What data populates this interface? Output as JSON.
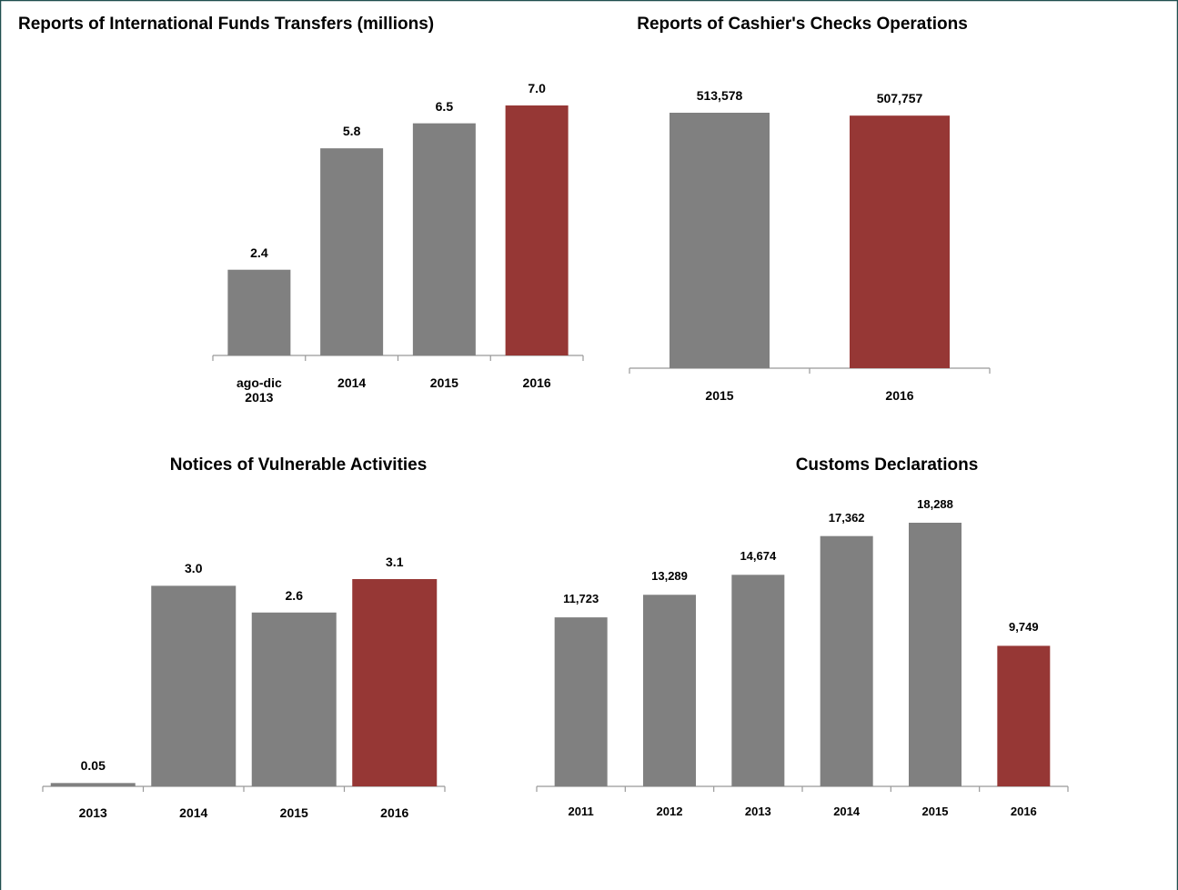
{
  "chart_data": [
    {
      "type": "bar",
      "title": "Reports of International Funds Transfers (millions)",
      "categories": [
        "ago-dic\n2013",
        "2014",
        "2015",
        "2016"
      ],
      "values": [
        2.4,
        5.8,
        6.5,
        7.0
      ],
      "value_labels": [
        "2.4",
        "5.8",
        "6.5",
        "7.0"
      ],
      "colors": [
        "#808080",
        "#808080",
        "#808080",
        "#963735"
      ]
    },
    {
      "type": "bar",
      "title": "Reports of Cashier's Checks Operations",
      "categories": [
        "2015",
        "2016"
      ],
      "values": [
        513578,
        507757
      ],
      "value_labels": [
        "513,578",
        "507,757"
      ],
      "colors": [
        "#808080",
        "#963735"
      ]
    },
    {
      "type": "bar",
      "title": "Notices of Vulnerable Activities",
      "categories": [
        "2013",
        "2014",
        "2015",
        "2016"
      ],
      "values": [
        0.05,
        3.0,
        2.6,
        3.1
      ],
      "value_labels": [
        "0.05",
        "3.0",
        "2.6",
        "3.1"
      ],
      "colors": [
        "#808080",
        "#808080",
        "#808080",
        "#963735"
      ]
    },
    {
      "type": "bar",
      "title": "Customs Declarations",
      "categories": [
        "2011",
        "2012",
        "2013",
        "2014",
        "2015",
        "2016"
      ],
      "values": [
        11723,
        13289,
        14674,
        17362,
        18288,
        9749
      ],
      "value_labels": [
        "11,723",
        "13,289",
        "14,674",
        "17,362",
        "18,288",
        "9,749"
      ],
      "colors": [
        "#808080",
        "#808080",
        "#808080",
        "#808080",
        "#808080",
        "#963735"
      ]
    }
  ]
}
